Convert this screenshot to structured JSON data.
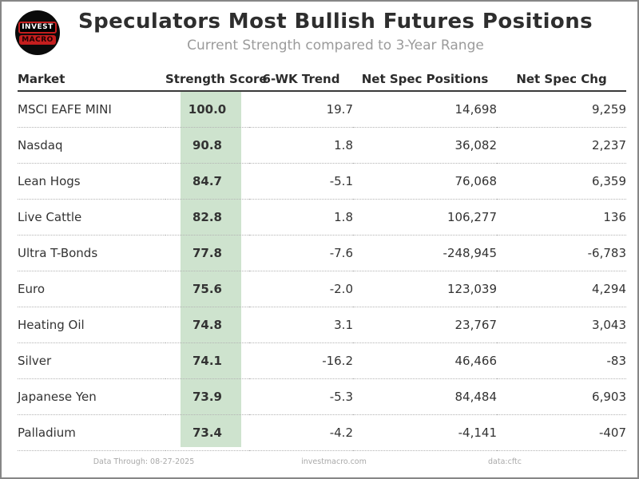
{
  "header": {
    "title": "Speculators Most Bullish Futures Positions",
    "subtitle": "Current Strength compared to 3-Year Range",
    "logo": {
      "line1": "INVEST",
      "line2": "MACRO"
    }
  },
  "table": {
    "columns": [
      "Market",
      "Strength Score",
      "6-WK Trend",
      "Net Spec Positions",
      "Net Spec Chg"
    ],
    "rows": [
      {
        "market": "MSCI EAFE MINI",
        "strength_score": "100.0",
        "six_wk_trend": "19.7",
        "net_spec_positions": "14,698",
        "net_spec_chg": "9,259"
      },
      {
        "market": "Nasdaq",
        "strength_score": "90.8",
        "six_wk_trend": "1.8",
        "net_spec_positions": "36,082",
        "net_spec_chg": "2,237"
      },
      {
        "market": "Lean Hogs",
        "strength_score": "84.7",
        "six_wk_trend": "-5.1",
        "net_spec_positions": "76,068",
        "net_spec_chg": "6,359"
      },
      {
        "market": "Live Cattle",
        "strength_score": "82.8",
        "six_wk_trend": "1.8",
        "net_spec_positions": "106,277",
        "net_spec_chg": "136"
      },
      {
        "market": "Ultra T-Bonds",
        "strength_score": "77.8",
        "six_wk_trend": "-7.6",
        "net_spec_positions": "-248,945",
        "net_spec_chg": "-6,783"
      },
      {
        "market": "Euro",
        "strength_score": "75.6",
        "six_wk_trend": "-2.0",
        "net_spec_positions": "123,039",
        "net_spec_chg": "4,294"
      },
      {
        "market": "Heating Oil",
        "strength_score": "74.8",
        "six_wk_trend": "3.1",
        "net_spec_positions": "23,767",
        "net_spec_chg": "3,043"
      },
      {
        "market": "Silver",
        "strength_score": "74.1",
        "six_wk_trend": "-16.2",
        "net_spec_positions": "46,466",
        "net_spec_chg": "-83"
      },
      {
        "market": "Japanese Yen",
        "strength_score": "73.9",
        "six_wk_trend": "-5.3",
        "net_spec_positions": "84,484",
        "net_spec_chg": "6,903"
      },
      {
        "market": "Palladium",
        "strength_score": "73.4",
        "six_wk_trend": "-4.2",
        "net_spec_positions": "-4,141",
        "net_spec_chg": "-407"
      }
    ]
  },
  "chart_data": {
    "type": "table",
    "title": "Speculators Most Bullish Futures Positions",
    "subtitle": "Current Strength compared to 3-Year Range",
    "columns": [
      "Market",
      "Strength Score",
      "6-WK Trend",
      "Net Spec Positions",
      "Net Spec Chg"
    ],
    "rows": [
      [
        "MSCI EAFE MINI",
        100.0,
        19.7,
        14698,
        9259
      ],
      [
        "Nasdaq",
        90.8,
        1.8,
        36082,
        2237
      ],
      [
        "Lean Hogs",
        84.7,
        -5.1,
        76068,
        6359
      ],
      [
        "Live Cattle",
        82.8,
        1.8,
        106277,
        136
      ],
      [
        "Ultra T-Bonds",
        77.8,
        -7.6,
        -248945,
        -6783
      ],
      [
        "Euro",
        75.6,
        -2.0,
        123039,
        4294
      ],
      [
        "Heating Oil",
        74.8,
        3.1,
        23767,
        3043
      ],
      [
        "Silver",
        74.1,
        -16.2,
        46466,
        -83
      ],
      [
        "Japanese Yen",
        73.9,
        -5.3,
        84484,
        6903
      ],
      [
        "Palladium",
        73.4,
        -4.2,
        -4141,
        -407
      ]
    ]
  },
  "footer": {
    "data_through": "Data Through: 08-27-2025",
    "site": "investmacro.com",
    "source": "data:cftc"
  },
  "colors": {
    "score_column_bg": "#cee3ce",
    "logo_red": "#c41e1e",
    "title_text": "#2e2e2e",
    "subtitle_text": "#9b9b9b"
  }
}
